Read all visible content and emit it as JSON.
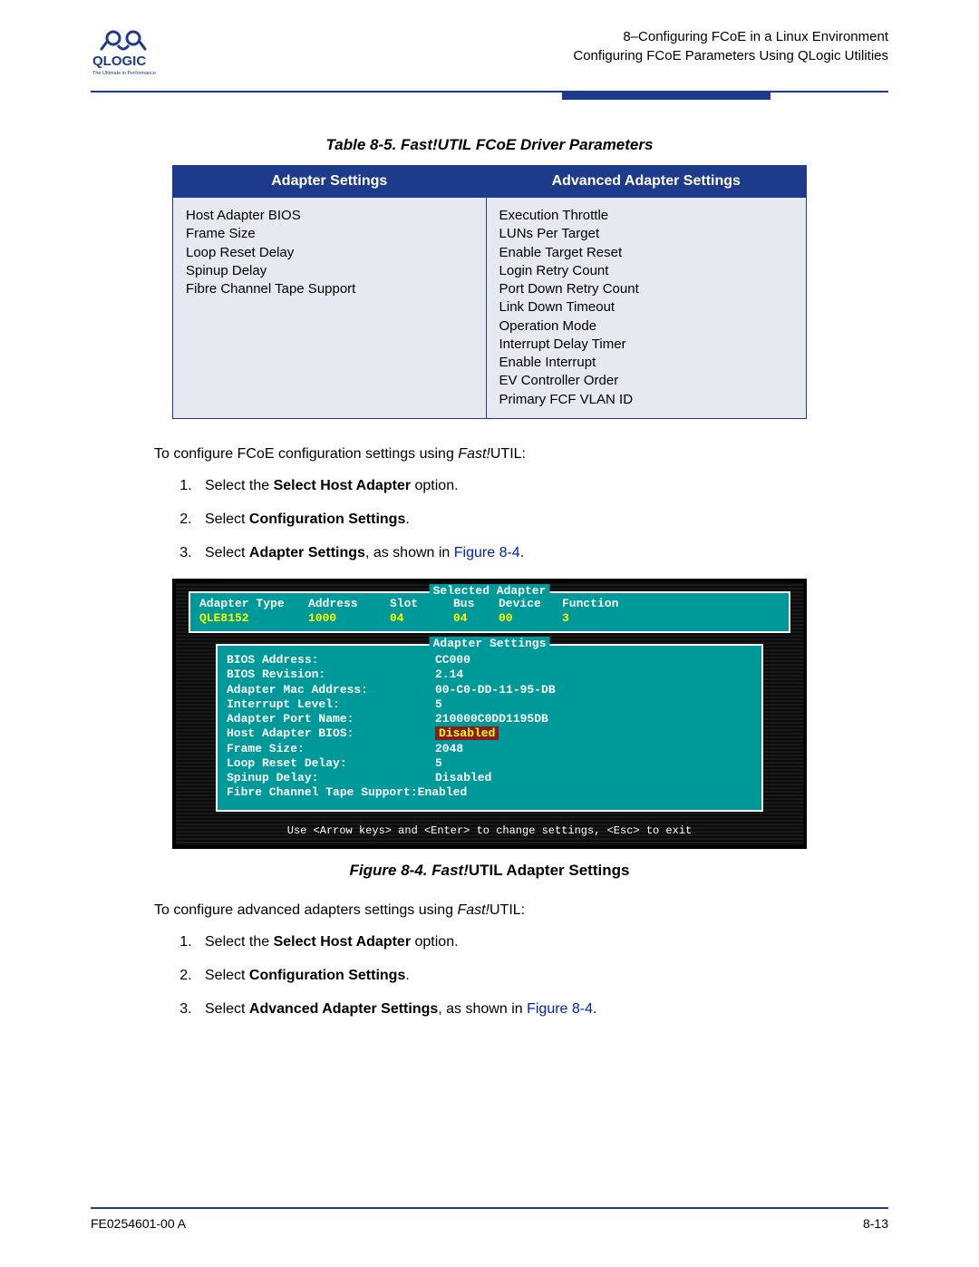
{
  "header": {
    "logo_text": "QLOGIC",
    "tagline": "The Ultimate in Performance",
    "line1": "8–Configuring FCoE in a Linux Environment",
    "line2": "Configuring FCoE Parameters Using QLogic Utilities"
  },
  "colors": {
    "accent": "#1e3a8a",
    "table_bg": "#e6e9f0",
    "link": "#0020c2",
    "term_teal": "#009999",
    "term_yellow": "#ffff00",
    "term_red": "#8b1a1a"
  },
  "table_caption": "Table 8-5. Fast!UTIL FCoE Driver Parameters",
  "table": {
    "headers": [
      "Adapter Settings",
      "Advanced Adapter Settings"
    ],
    "col1": [
      "Host Adapter BIOS",
      "Frame Size",
      "Loop Reset Delay",
      "Spinup Delay",
      "Fibre Channel Tape Support"
    ],
    "col2": [
      "Execution Throttle",
      "LUNs Per Target",
      "Enable Target Reset",
      "Login Retry Count",
      "Port Down Retry Count",
      "Link Down Timeout",
      "Operation Mode",
      "Interrupt Delay Timer",
      "Enable Interrupt",
      "EV Controller Order",
      "Primary FCF VLAN ID"
    ]
  },
  "intro1_pre": "To configure FCoE configuration settings using ",
  "intro1_italic": "Fast!",
  "intro1_post": "UTIL:",
  "steps1": {
    "s1_a": "Select the ",
    "s1_b": "Select Host Adapter",
    "s1_c": " option.",
    "s2_a": "Select ",
    "s2_b": "Configuration Settings",
    "s2_c": ".",
    "s3_a": "Select ",
    "s3_b": "Adapter Settings",
    "s3_c": ", as shown in ",
    "s3_link": "Figure 8-4",
    "s3_d": "."
  },
  "terminal": {
    "box1_title": "Selected Adapter",
    "hdr": {
      "c1": "Adapter Type",
      "c2": "Address",
      "c3": "Slot",
      "c4": "Bus",
      "c5": "Device",
      "c6": "Function"
    },
    "row": {
      "c1": "QLE8152",
      "c2": "1000",
      "c3": "04",
      "c4": "04",
      "c5": "00",
      "c6": "3"
    },
    "box2_title": "Adapter Settings",
    "settings": [
      {
        "label": "BIOS Address:",
        "val": "CC000"
      },
      {
        "label": "BIOS Revision:",
        "val": "2.14"
      },
      {
        "label": "Adapter Mac Address:",
        "val": "00-C0-DD-11-95-DB"
      },
      {
        "label": "Interrupt Level:",
        "val": "5"
      },
      {
        "label": "Adapter Port Name:",
        "val": "210000C0DD1195DB"
      },
      {
        "label": "Host Adapter BIOS:",
        "val": "Disabled",
        "hl": true
      },
      {
        "label": "Frame Size:",
        "val": "2048"
      },
      {
        "label": "Loop Reset Delay:",
        "val": "5"
      },
      {
        "label": "Spinup Delay:",
        "val": "Disabled"
      },
      {
        "label": "Fibre Channel Tape Support:",
        "val": "Enabled",
        "nosp": true
      }
    ],
    "footer": "Use <Arrow keys> and <Enter> to change settings, <Esc> to exit"
  },
  "figure_caption_a": "Figure 8-4. ",
  "figure_caption_b": "Fast!",
  "figure_caption_c": "UTIL Adapter Settings",
  "intro2_pre": "To configure advanced adapters settings using ",
  "intro2_italic": "Fast!",
  "intro2_post": "UTIL:",
  "steps2": {
    "s1_a": "Select the ",
    "s1_b": "Select Host Adapter",
    "s1_c": " option.",
    "s2_a": "Select ",
    "s2_b": "Configuration Settings",
    "s2_c": ".",
    "s3_a": "Select ",
    "s3_b": "Advanced Adapter Settings",
    "s3_c": ", as shown in ",
    "s3_link": "Figure 8-4",
    "s3_d": "."
  },
  "footer": {
    "left": "FE0254601-00 A",
    "right": "8-13"
  }
}
